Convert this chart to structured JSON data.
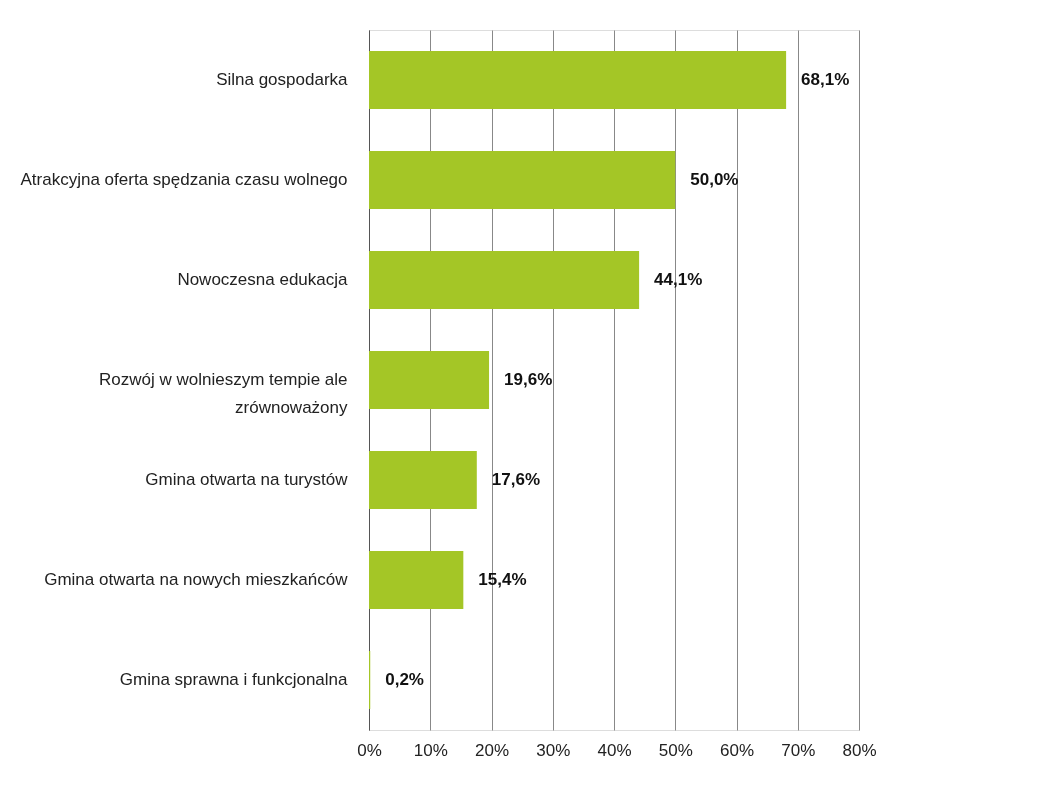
{
  "chart_data": {
    "type": "bar",
    "orientation": "horizontal",
    "categories": [
      "Silna gospodarka",
      "Atrakcyjna oferta spędzania czasu wolnego",
      "Nowoczesna edukacja",
      "Rozwój w wolnieszym tempie ale zrównoważony",
      "Gmina otwarta na turystów",
      "Gmina otwarta na nowych mieszkańców",
      "Gmina sprawna i funkcjonalna"
    ],
    "values": [
      68.1,
      50.0,
      44.1,
      19.6,
      17.6,
      15.4,
      0.2
    ],
    "value_labels": [
      "68,1%",
      "50,0%",
      "44,1%",
      "19,6%",
      "17,6%",
      "15,4%",
      "0,2%"
    ],
    "color": "#a4c626",
    "xlim": [
      0,
      80
    ],
    "xticks": [
      {
        "value": 0,
        "label": "0%"
      },
      {
        "value": 10,
        "label": "10%"
      },
      {
        "value": 20,
        "label": "20%"
      },
      {
        "value": 30,
        "label": "30%"
      },
      {
        "value": 40,
        "label": "40%"
      },
      {
        "value": 50,
        "label": "50%"
      },
      {
        "value": 60,
        "label": "60%"
      },
      {
        "value": 70,
        "label": "70%"
      },
      {
        "value": 80,
        "label": "80%"
      }
    ],
    "grid": "x"
  }
}
